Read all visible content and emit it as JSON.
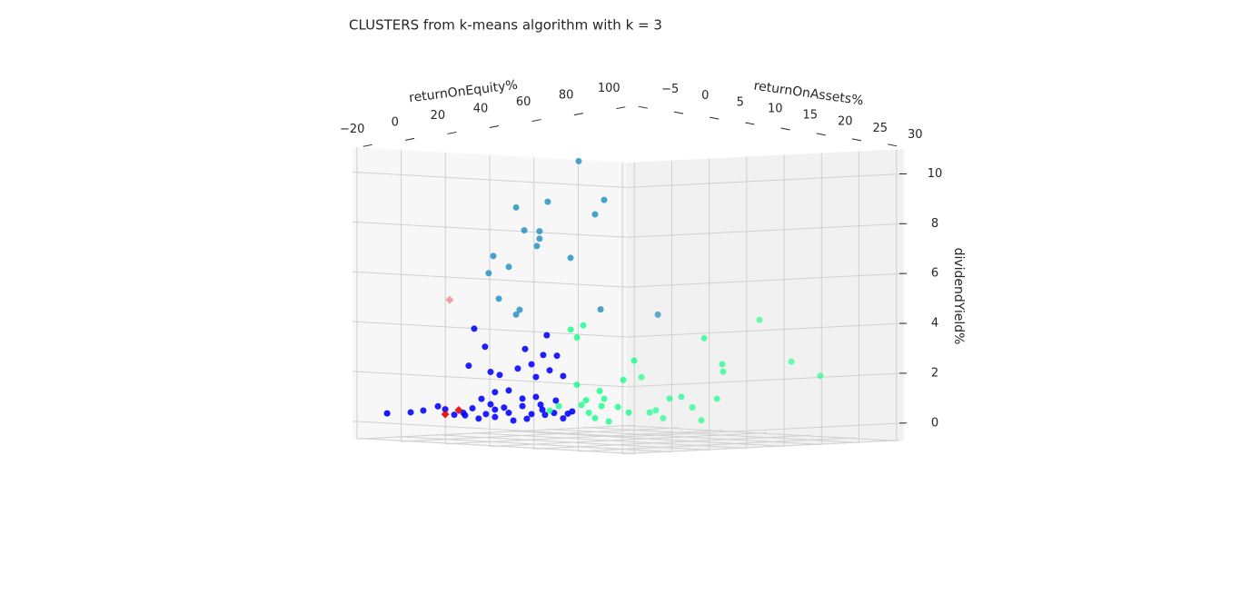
{
  "chart_data": {
    "type": "scatter3d",
    "title": "CLUSTERS from k-means algorithm with k = 3",
    "xlabel": "returnOnEquity%",
    "ylabel": "returnOnAssets%",
    "zlabel": "dividendYield%",
    "xlim": [
      -22,
      102
    ],
    "ylim": [
      -6,
      31
    ],
    "zlim": [
      -0.7,
      11
    ],
    "xticks": [
      {
        "value": -20,
        "label": "−20"
      },
      0,
      20,
      40,
      60,
      80,
      100
    ],
    "yticks": [
      {
        "value": -5,
        "label": "−5"
      },
      0,
      5,
      10,
      15,
      20,
      25,
      30
    ],
    "zticks": [
      0,
      2,
      4,
      6,
      8,
      10
    ],
    "grid": true,
    "series": [
      {
        "color": "#0000ff",
        "marker": "circle",
        "x": [
          -16.5,
          -16.0,
          -10.3,
          -3.7,
          -0.4,
          8.6,
          11.9,
          14.7,
          18.0,
          22.1,
          26.2,
          30.4,
          34.5,
          38.6,
          43.5,
          48.8,
          52.9,
          57.0,
          12.7,
          17.6,
          10.2,
          20.1,
          24.2,
          22.1,
          28.3,
          32.4,
          35.7,
          38.6,
          40.6,
          43.9,
          46.8,
          45.5,
          50.1,
          52.9,
          49.6,
          16.0,
          20.1,
          34.5,
          40.6,
          28.3,
          22.1,
          44.7,
          55.0,
          7.8,
          3.7,
          36.5,
          42.7
        ],
        "y": [
          -3,
          0,
          0,
          0,
          0,
          0,
          0,
          0,
          0,
          0,
          0,
          0,
          0,
          0,
          0,
          0,
          0,
          0,
          0,
          0,
          0,
          0,
          0,
          0,
          0,
          0,
          0,
          0,
          0,
          0,
          0,
          0,
          0,
          0,
          0,
          0,
          0,
          0,
          0,
          0,
          0,
          0,
          0,
          0,
          0,
          0,
          0
        ],
        "z": [
          0.3,
          0.3,
          0.4,
          0.6,
          0.5,
          0.3,
          0.6,
          0.2,
          0.4,
          0.6,
          0.7,
          0.2,
          0.8,
          0.5,
          0.7,
          0.6,
          0.4,
          0.7,
          3.8,
          3.1,
          2.3,
          2.1,
          2.0,
          1.3,
          1.4,
          2.3,
          3.1,
          2.5,
          2.0,
          2.9,
          2.3,
          3.7,
          2.9,
          2.1,
          1.1,
          1.0,
          0.8,
          1.1,
          1.2,
          0.5,
          0.3,
          0.5,
          0.6,
          0.4,
          0.3,
          0.3,
          0.9
        ]
      },
      {
        "color": "#00ff80",
        "marker": "circle",
        "x": [
          6.2,
          10.3,
          15.7,
          18.5,
          21.4,
          18.5,
          20.6,
          23.9,
          26.7,
          29.6,
          32.9,
          37.0,
          39.5,
          41.9,
          44.4,
          28.8,
          22.6,
          30.8,
          20.6,
          24.3,
          27.1,
          30.4,
          33.3,
          38.6,
          43.6,
          47.7,
          48.9,
          54.7,
          57.1,
          57.5,
          57.0,
          71.4,
          84.5
        ],
        "y": [
          12,
          12,
          12,
          12,
          12,
          12,
          12,
          12,
          12,
          12,
          12,
          12,
          12,
          12,
          12,
          12,
          12,
          12,
          20,
          20,
          20,
          20,
          20,
          20,
          20,
          20,
          20,
          20,
          20,
          20,
          25,
          25,
          25
        ],
        "z": [
          0.3,
          0.5,
          3.6,
          3.3,
          3.8,
          1.4,
          0.6,
          0.3,
          0.1,
          0.6,
          0,
          0.6,
          1.7,
          0.4,
          2.5,
          1.2,
          0.8,
          0.9,
          1.6,
          0.2,
          0.3,
          0,
          0.8,
          0.9,
          0.5,
          0,
          3.3,
          0.9,
          2.3,
          2.0,
          4.0,
          2.4,
          1.9
        ]
      },
      {
        "color": "#1f8fbf",
        "marker": "circle",
        "x": [
          43.0,
          14.7,
          29.0,
          54.5,
          50.4,
          18.4,
          25.3,
          25.3,
          24.1,
          39.3,
          4.4,
          11.4,
          2.3,
          6.9,
          16.3,
          14.7,
          52.9,
          55.1
        ],
        "y": [
          5,
          5,
          5,
          5,
          5,
          5,
          5,
          5,
          5,
          5,
          5,
          5,
          5,
          5,
          5,
          5,
          5,
          12
        ],
        "z": [
          10.6,
          8.6,
          8.9,
          9.1,
          8.5,
          7.7,
          7.7,
          7.4,
          7.1,
          6.7,
          6.6,
          6.2,
          5.9,
          4.9,
          4.5,
          4.3,
          4.7,
          4.4
        ]
      },
      {
        "color": "#e00000",
        "marker": "diamond",
        "x": [
          -0.4,
          5.7,
          1.6
        ],
        "y": [
          0,
          0,
          0
        ],
        "z": [
          0.3,
          0.5,
          4.9
        ]
      }
    ]
  }
}
